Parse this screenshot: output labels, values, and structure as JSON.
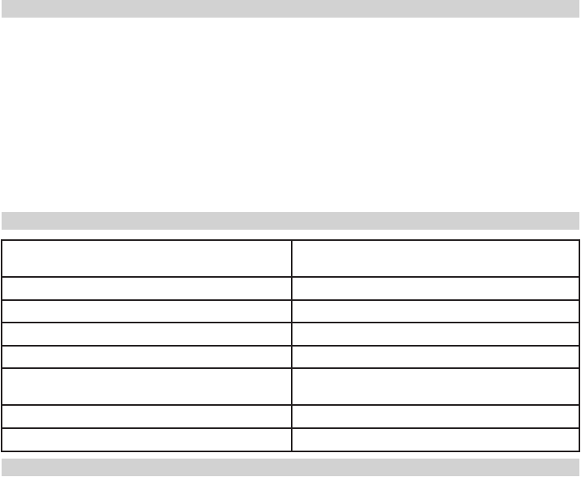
{
  "colors": {
    "section_bar": "#d2d2d2",
    "table_border": "#231f20"
  },
  "sections": [
    {
      "heading": ""
    },
    {
      "heading": ""
    },
    {
      "heading": ""
    }
  ],
  "table": {
    "rows": [
      [
        "",
        ""
      ],
      [
        "",
        ""
      ],
      [
        "",
        ""
      ],
      [
        "",
        ""
      ],
      [
        "",
        ""
      ],
      [
        "",
        ""
      ],
      [
        "",
        ""
      ],
      [
        "",
        ""
      ]
    ]
  }
}
